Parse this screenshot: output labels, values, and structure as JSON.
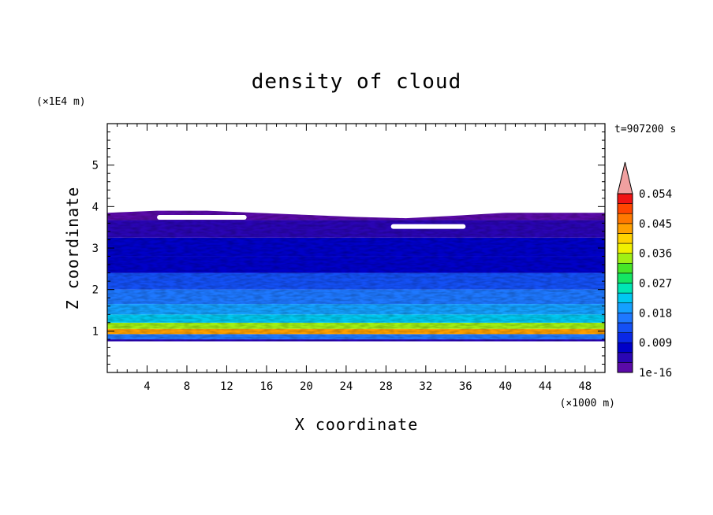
{
  "chart_data": {
    "type": "heatmap",
    "title": "density of cloud",
    "xlabel": "X coordinate",
    "ylabel": "Z coordinate",
    "x_unit": "(×1000 m)",
    "y_unit": "(×1E4 m)",
    "time_label": "t=907200 s",
    "xlim": [
      0,
      50
    ],
    "ylim": [
      0,
      6
    ],
    "x_ticks": [
      "4",
      "8",
      "12",
      "16",
      "20",
      "24",
      "28",
      "32",
      "36",
      "40",
      "44",
      "48"
    ],
    "y_ticks": [
      "1",
      "2",
      "3",
      "4",
      "5"
    ],
    "colorbar": {
      "ticks": [
        "1e-16",
        "0.009",
        "0.018",
        "0.027",
        "0.036",
        "0.045",
        "0.054"
      ],
      "levels": [
        "#5a0aa8",
        "#2a05b4",
        "#0000c8",
        "#0a28e6",
        "#1450f5",
        "#1e78ff",
        "#14a0ff",
        "#00c8f0",
        "#00e6b4",
        "#14e664",
        "#46e628",
        "#a0f014",
        "#f0f000",
        "#ffd200",
        "#ffa000",
        "#ff7800",
        "#ff4600",
        "#f01414",
        "#f0a0a0"
      ],
      "extend": "max"
    },
    "profile": {
      "z": [
        0.75,
        0.85,
        1.0,
        1.1,
        1.3,
        1.5,
        1.8,
        2.2,
        2.6,
        3.0,
        3.5,
        3.85
      ],
      "density": [
        0.004,
        0.02,
        0.05,
        0.038,
        0.026,
        0.022,
        0.018,
        0.014,
        0.01,
        0.008,
        0.004,
        0.002
      ]
    },
    "cloud_top": [
      3.85,
      3.9,
      3.9,
      3.85,
      3.8,
      3.75,
      3.72,
      3.78,
      3.85,
      3.85,
      3.85
    ],
    "cloud_base": 0.75,
    "grid": false
  }
}
